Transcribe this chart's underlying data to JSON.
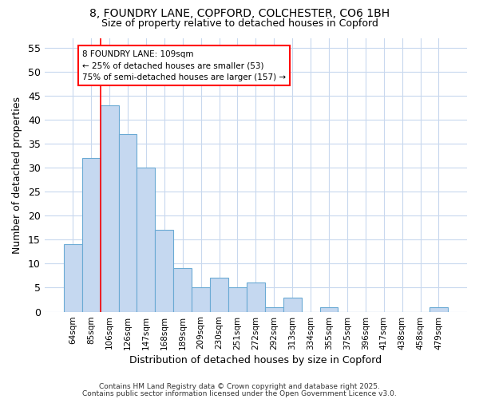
{
  "title1": "8, FOUNDRY LANE, COPFORD, COLCHESTER, CO6 1BH",
  "title2": "Size of property relative to detached houses in Copford",
  "xlabel": "Distribution of detached houses by size in Copford",
  "ylabel": "Number of detached properties",
  "categories": [
    "64sqm",
    "85sqm",
    "106sqm",
    "126sqm",
    "147sqm",
    "168sqm",
    "189sqm",
    "209sqm",
    "230sqm",
    "251sqm",
    "272sqm",
    "292sqm",
    "313sqm",
    "334sqm",
    "355sqm",
    "375sqm",
    "396sqm",
    "417sqm",
    "438sqm",
    "458sqm",
    "479sqm"
  ],
  "values": [
    14,
    32,
    43,
    37,
    30,
    17,
    9,
    5,
    7,
    5,
    6,
    1,
    3,
    0,
    1,
    0,
    0,
    0,
    0,
    0,
    1
  ],
  "bar_color": "#c5d8f0",
  "bar_edge_color": "#6aaad4",
  "bg_color": "#ffffff",
  "grid_color": "#c8d8ee",
  "red_line_bin_index": 2,
  "annotation_text": "8 FOUNDRY LANE: 109sqm\n← 25% of detached houses are smaller (53)\n75% of semi-detached houses are larger (157) →",
  "footer1": "Contains HM Land Registry data © Crown copyright and database right 2025.",
  "footer2": "Contains public sector information licensed under the Open Government Licence v3.0.",
  "ylim": [
    0,
    57
  ],
  "yticks": [
    0,
    5,
    10,
    15,
    20,
    25,
    30,
    35,
    40,
    45,
    50,
    55
  ]
}
